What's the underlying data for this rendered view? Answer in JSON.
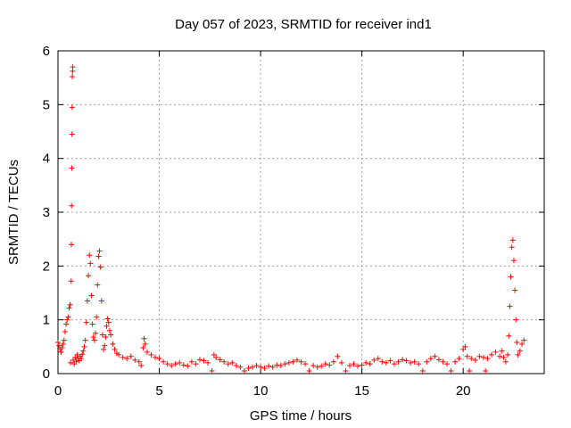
{
  "chart_data": {
    "type": "scatter",
    "title": "Day 057 of 2023, SRMTID for receiver ind1",
    "xlabel": "GPS time / hours",
    "ylabel": "SRMTID / TECUs",
    "xlim": [
      0,
      24
    ],
    "ylim": [
      0,
      6
    ],
    "xticks": [
      0,
      5,
      10,
      15,
      20
    ],
    "yticks": [
      0,
      1,
      2,
      3,
      4,
      5,
      6
    ],
    "xtick_labels": [
      "0",
      "5",
      "10",
      "15",
      "20"
    ],
    "ytick_labels": [
      "0",
      "1",
      "2",
      "3",
      "4",
      "5",
      "6"
    ],
    "grid": true,
    "marker": "+",
    "color": "#ff0000",
    "series": [
      {
        "name": "SRMTID",
        "points": [
          [
            0.0,
            0.58
          ],
          [
            0.05,
            0.52
          ],
          [
            0.1,
            0.45
          ],
          [
            0.15,
            0.4
          ],
          [
            0.2,
            0.48
          ],
          [
            0.25,
            0.55
          ],
          [
            0.3,
            0.62
          ],
          [
            0.35,
            0.78
          ],
          [
            0.4,
            0.92
          ],
          [
            0.45,
            1.0
          ],
          [
            0.5,
            1.05
          ],
          [
            0.55,
            1.22
          ],
          [
            0.6,
            1.28
          ],
          [
            0.62,
            0.2
          ],
          [
            0.65,
            1.72
          ],
          [
            0.66,
            2.4
          ],
          [
            0.67,
            3.12
          ],
          [
            0.68,
            3.82
          ],
          [
            0.69,
            4.45
          ],
          [
            0.7,
            4.95
          ],
          [
            0.71,
            5.52
          ],
          [
            0.72,
            5.62
          ],
          [
            0.73,
            5.7
          ],
          [
            0.75,
            0.25
          ],
          [
            0.8,
            0.18
          ],
          [
            0.85,
            0.3
          ],
          [
            0.9,
            0.22
          ],
          [
            0.95,
            0.35
          ],
          [
            1.0,
            0.28
          ],
          [
            1.05,
            0.24
          ],
          [
            1.1,
            0.32
          ],
          [
            1.15,
            0.28
          ],
          [
            1.2,
            0.36
          ],
          [
            1.25,
            0.42
          ],
          [
            1.3,
            0.5
          ],
          [
            1.35,
            0.62
          ],
          [
            1.4,
            0.95
          ],
          [
            1.45,
            1.35
          ],
          [
            1.5,
            1.82
          ],
          [
            1.55,
            2.2
          ],
          [
            1.6,
            2.05
          ],
          [
            1.65,
            1.45
          ],
          [
            1.7,
            0.92
          ],
          [
            1.75,
            0.68
          ],
          [
            1.8,
            0.62
          ],
          [
            1.85,
            0.75
          ],
          [
            1.9,
            1.05
          ],
          [
            1.95,
            1.65
          ],
          [
            2.0,
            2.18
          ],
          [
            2.05,
            2.28
          ],
          [
            2.1,
            1.98
          ],
          [
            2.15,
            1.35
          ],
          [
            2.2,
            0.72
          ],
          [
            2.25,
            0.45
          ],
          [
            2.3,
            0.52
          ],
          [
            2.35,
            0.68
          ],
          [
            2.4,
            0.88
          ],
          [
            2.45,
            1.02
          ],
          [
            2.5,
            0.95
          ],
          [
            2.55,
            0.8
          ],
          [
            2.6,
            0.72
          ],
          [
            2.7,
            0.55
          ],
          [
            2.8,
            0.45
          ],
          [
            2.9,
            0.38
          ],
          [
            3.0,
            0.35
          ],
          [
            3.2,
            0.3
          ],
          [
            3.4,
            0.28
          ],
          [
            3.6,
            0.32
          ],
          [
            3.8,
            0.25
          ],
          [
            4.0,
            0.22
          ],
          [
            4.1,
            0.15
          ],
          [
            4.2,
            0.48
          ],
          [
            4.25,
            0.65
          ],
          [
            4.3,
            0.55
          ],
          [
            4.4,
            0.4
          ],
          [
            4.6,
            0.35
          ],
          [
            4.8,
            0.3
          ],
          [
            5.0,
            0.28
          ],
          [
            5.2,
            0.22
          ],
          [
            5.4,
            0.18
          ],
          [
            5.6,
            0.15
          ],
          [
            5.8,
            0.18
          ],
          [
            6.0,
            0.2
          ],
          [
            6.2,
            0.16
          ],
          [
            6.4,
            0.14
          ],
          [
            6.6,
            0.22
          ],
          [
            6.8,
            0.18
          ],
          [
            7.0,
            0.26
          ],
          [
            7.2,
            0.24
          ],
          [
            7.4,
            0.2
          ],
          [
            7.6,
            0.05
          ],
          [
            7.7,
            0.35
          ],
          [
            7.8,
            0.3
          ],
          [
            8.0,
            0.26
          ],
          [
            8.2,
            0.22
          ],
          [
            8.4,
            0.18
          ],
          [
            8.6,
            0.2
          ],
          [
            8.8,
            0.15
          ],
          [
            9.0,
            0.12
          ],
          [
            9.2,
            0.05
          ],
          [
            9.4,
            0.1
          ],
          [
            9.6,
            0.12
          ],
          [
            9.8,
            0.15
          ],
          [
            10.0,
            0.12
          ],
          [
            10.2,
            0.1
          ],
          [
            10.4,
            0.14
          ],
          [
            10.6,
            0.12
          ],
          [
            10.8,
            0.16
          ],
          [
            11.0,
            0.15
          ],
          [
            11.2,
            0.18
          ],
          [
            11.4,
            0.2
          ],
          [
            11.6,
            0.22
          ],
          [
            11.8,
            0.25
          ],
          [
            12.0,
            0.22
          ],
          [
            12.2,
            0.18
          ],
          [
            12.4,
            0.05
          ],
          [
            12.6,
            0.15
          ],
          [
            12.8,
            0.12
          ],
          [
            13.0,
            0.14
          ],
          [
            13.2,
            0.18
          ],
          [
            13.4,
            0.16
          ],
          [
            13.6,
            0.22
          ],
          [
            13.8,
            0.32
          ],
          [
            14.0,
            0.2
          ],
          [
            14.2,
            0.05
          ],
          [
            14.4,
            0.15
          ],
          [
            14.6,
            0.18
          ],
          [
            14.8,
            0.14
          ],
          [
            15.0,
            0.16
          ],
          [
            15.2,
            0.2
          ],
          [
            15.4,
            0.18
          ],
          [
            15.6,
            0.25
          ],
          [
            15.8,
            0.28
          ],
          [
            16.0,
            0.22
          ],
          [
            16.2,
            0.2
          ],
          [
            16.4,
            0.24
          ],
          [
            16.6,
            0.18
          ],
          [
            16.8,
            0.22
          ],
          [
            17.0,
            0.26
          ],
          [
            17.2,
            0.24
          ],
          [
            17.4,
            0.2
          ],
          [
            17.6,
            0.22
          ],
          [
            17.8,
            0.18
          ],
          [
            18.0,
            0.05
          ],
          [
            18.2,
            0.22
          ],
          [
            18.4,
            0.28
          ],
          [
            18.6,
            0.32
          ],
          [
            18.8,
            0.26
          ],
          [
            19.0,
            0.22
          ],
          [
            19.2,
            0.18
          ],
          [
            19.4,
            0.05
          ],
          [
            19.6,
            0.22
          ],
          [
            19.8,
            0.28
          ],
          [
            20.0,
            0.45
          ],
          [
            20.1,
            0.5
          ],
          [
            20.2,
            0.32
          ],
          [
            20.3,
            0.05
          ],
          [
            20.4,
            0.28
          ],
          [
            20.6,
            0.25
          ],
          [
            20.8,
            0.32
          ],
          [
            21.0,
            0.3
          ],
          [
            21.1,
            0.05
          ],
          [
            21.2,
            0.28
          ],
          [
            21.4,
            0.35
          ],
          [
            21.6,
            0.4
          ],
          [
            21.8,
            0.32
          ],
          [
            21.9,
            0.42
          ],
          [
            22.0,
            0.3
          ],
          [
            22.1,
            0.22
          ],
          [
            22.2,
            0.35
          ],
          [
            22.25,
            0.7
          ],
          [
            22.3,
            1.25
          ],
          [
            22.35,
            1.8
          ],
          [
            22.4,
            2.35
          ],
          [
            22.45,
            2.48
          ],
          [
            22.5,
            2.1
          ],
          [
            22.55,
            1.55
          ],
          [
            22.6,
            1.0
          ],
          [
            22.65,
            0.58
          ],
          [
            22.7,
            0.35
          ],
          [
            22.8,
            0.42
          ],
          [
            22.9,
            0.55
          ],
          [
            23.0,
            0.62
          ]
        ]
      }
    ]
  }
}
